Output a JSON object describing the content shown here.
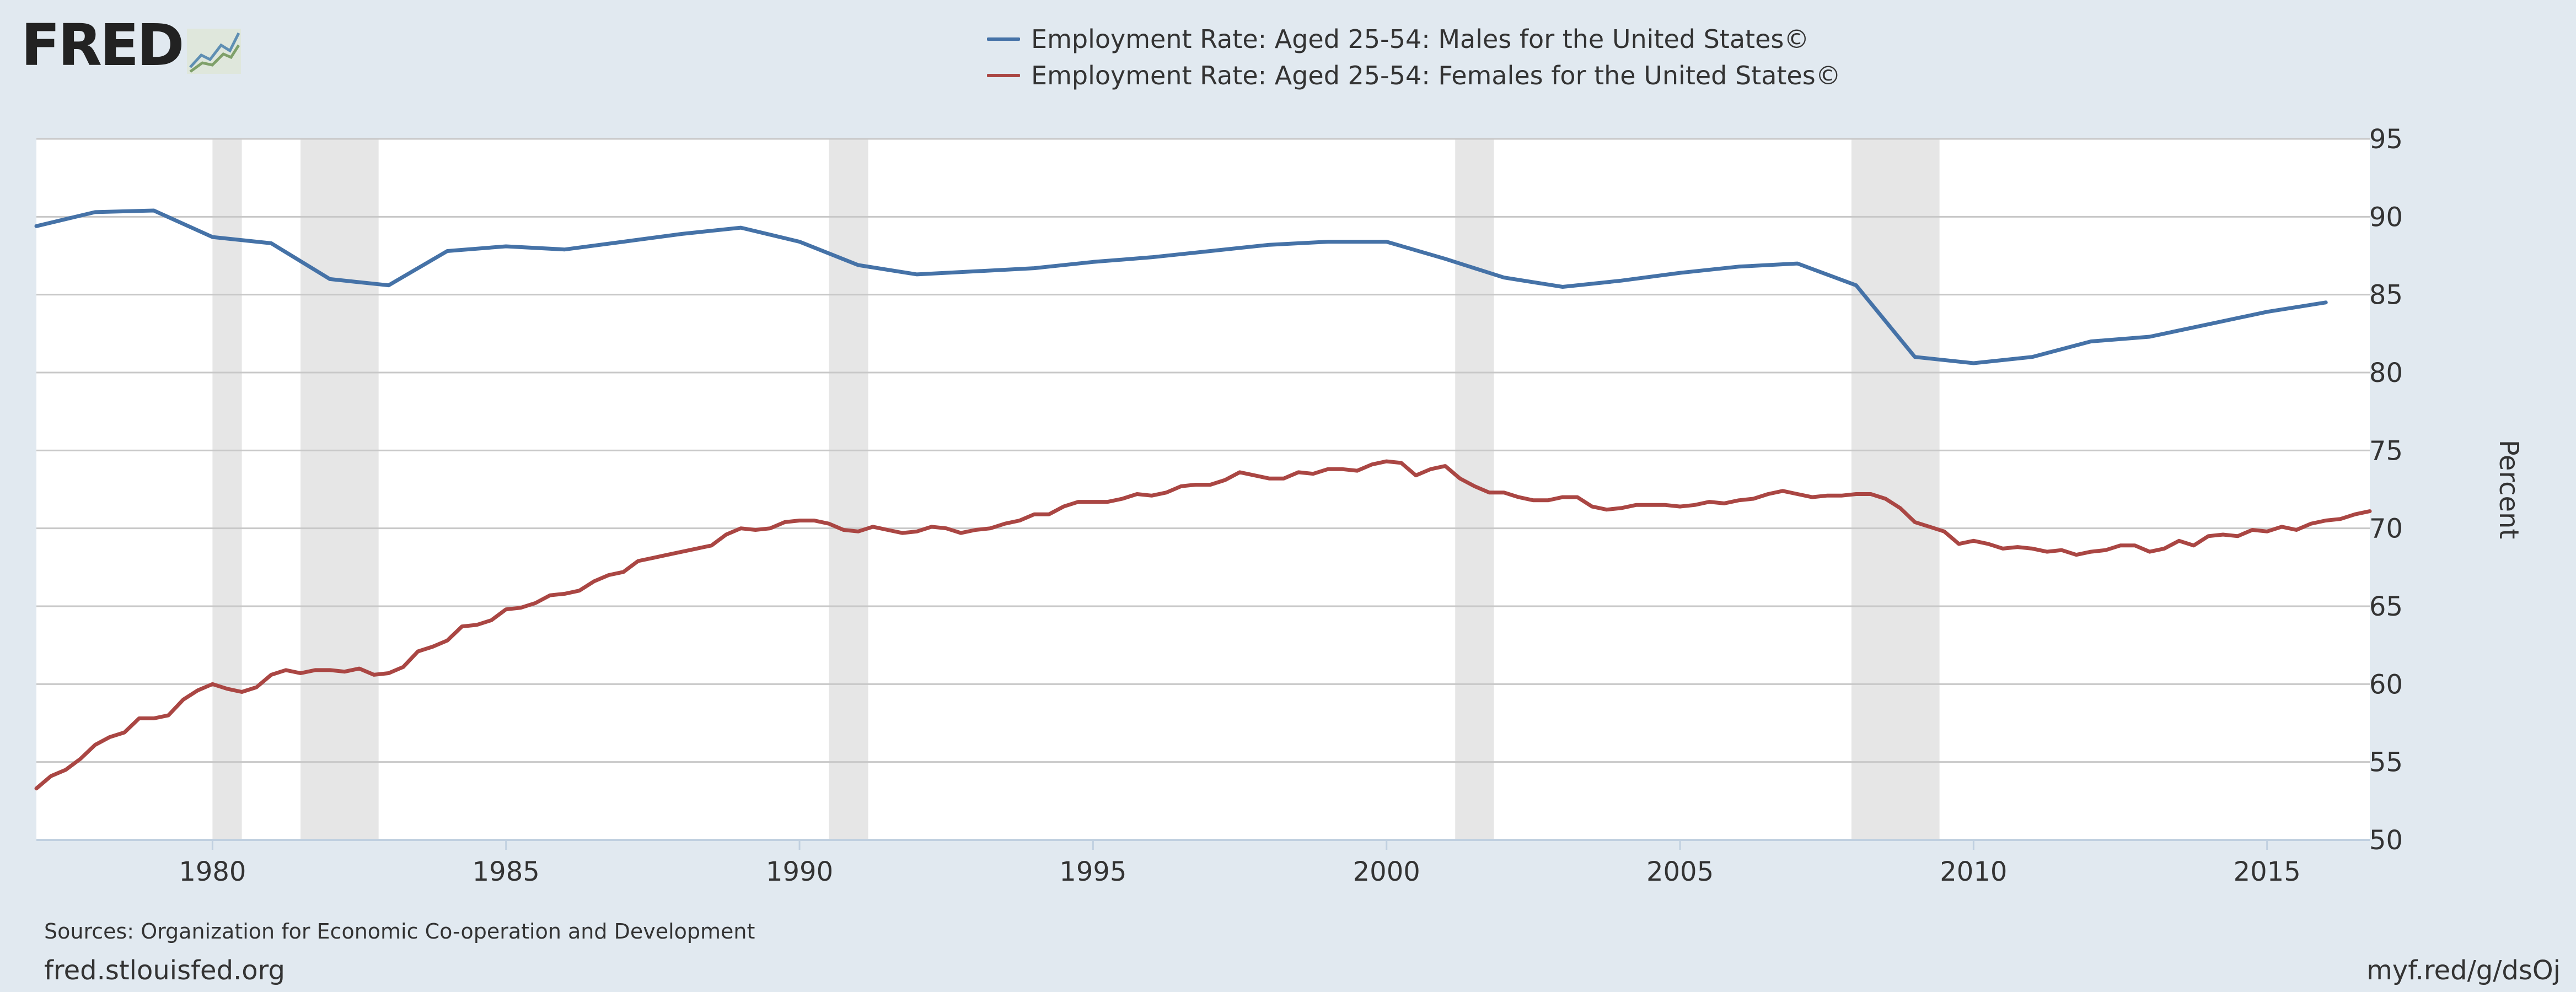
{
  "logo": {
    "text": "FRED"
  },
  "legend": [
    {
      "label": "Employment Rate: Aged 25-54: Males for the United States©",
      "color": "#4572a7"
    },
    {
      "label": "Employment Rate: Aged 25-54: Females for the United States©",
      "color": "#aa4643"
    }
  ],
  "footer": {
    "source": "Sources: Organization for Economic Co-operation and Development",
    "site": "fred.stlouisfed.org",
    "shortlink": "myf.red/g/dsOj"
  },
  "chart_data": {
    "type": "line",
    "title": "",
    "xlabel": "",
    "ylabel": "Percent",
    "xlim": [
      1977.0,
      2016.75
    ],
    "ylim": [
      50,
      95
    ],
    "x_ticks": [
      1980,
      1985,
      1990,
      1995,
      2000,
      2005,
      2010,
      2015
    ],
    "y_ticks": [
      50,
      55,
      60,
      65,
      70,
      75,
      80,
      85,
      90,
      95
    ],
    "grid": "horizontal",
    "legend_position": "top-center",
    "recessions": [
      [
        1980.0,
        1980.5
      ],
      [
        1981.5,
        1982.83
      ],
      [
        1990.5,
        1991.17
      ],
      [
        2001.17,
        2001.83
      ],
      [
        2007.92,
        2009.42
      ]
    ],
    "series": [
      {
        "name": "Employment Rate: Aged 25-54: Males for the United States©",
        "color": "#4572a7",
        "points": [
          [
            1977.0,
            89.4
          ],
          [
            1978.0,
            90.3
          ],
          [
            1979.0,
            90.4
          ],
          [
            1980.0,
            88.7
          ],
          [
            1981.0,
            88.3
          ],
          [
            1982.0,
            86.0
          ],
          [
            1983.0,
            85.6
          ],
          [
            1984.0,
            87.8
          ],
          [
            1985.0,
            88.1
          ],
          [
            1986.0,
            87.9
          ],
          [
            1987.0,
            88.4
          ],
          [
            1988.0,
            88.9
          ],
          [
            1989.0,
            89.3
          ],
          [
            1990.0,
            88.4
          ],
          [
            1991.0,
            86.9
          ],
          [
            1992.0,
            86.3
          ],
          [
            1993.0,
            86.5
          ],
          [
            1994.0,
            86.7
          ],
          [
            1995.0,
            87.1
          ],
          [
            1996.0,
            87.4
          ],
          [
            1997.0,
            87.8
          ],
          [
            1998.0,
            88.2
          ],
          [
            1999.0,
            88.4
          ],
          [
            2000.0,
            88.4
          ],
          [
            2001.0,
            87.3
          ],
          [
            2002.0,
            86.1
          ],
          [
            2003.0,
            85.5
          ],
          [
            2004.0,
            85.9
          ],
          [
            2005.0,
            86.4
          ],
          [
            2006.0,
            86.8
          ],
          [
            2007.0,
            87.0
          ],
          [
            2008.0,
            85.6
          ],
          [
            2009.0,
            81.0
          ],
          [
            2010.0,
            80.6
          ],
          [
            2011.0,
            81.0
          ],
          [
            2012.0,
            82.0
          ],
          [
            2013.0,
            82.3
          ],
          [
            2014.0,
            83.1
          ],
          [
            2015.0,
            83.9
          ],
          [
            2016.0,
            84.5
          ]
        ]
      },
      {
        "name": "Employment Rate: Aged 25-54: Females for the United States©",
        "color": "#aa4643",
        "points": [
          [
            1977.0,
            53.3
          ],
          [
            1977.25,
            54.1
          ],
          [
            1977.5,
            54.5
          ],
          [
            1977.75,
            55.2
          ],
          [
            1978.0,
            56.1
          ],
          [
            1978.25,
            56.6
          ],
          [
            1978.5,
            56.9
          ],
          [
            1978.75,
            57.8
          ],
          [
            1979.0,
            57.8
          ],
          [
            1979.25,
            58.0
          ],
          [
            1979.5,
            59.0
          ],
          [
            1979.75,
            59.6
          ],
          [
            1980.0,
            60.0
          ],
          [
            1980.25,
            59.7
          ],
          [
            1980.5,
            59.5
          ],
          [
            1980.75,
            59.8
          ],
          [
            1981.0,
            60.6
          ],
          [
            1981.25,
            60.9
          ],
          [
            1981.5,
            60.7
          ],
          [
            1981.75,
            60.9
          ],
          [
            1982.0,
            60.9
          ],
          [
            1982.25,
            60.8
          ],
          [
            1982.5,
            61.0
          ],
          [
            1982.75,
            60.6
          ],
          [
            1983.0,
            60.7
          ],
          [
            1983.25,
            61.1
          ],
          [
            1983.5,
            62.1
          ],
          [
            1983.75,
            62.4
          ],
          [
            1984.0,
            62.8
          ],
          [
            1984.25,
            63.7
          ],
          [
            1984.5,
            63.8
          ],
          [
            1984.75,
            64.1
          ],
          [
            1985.0,
            64.8
          ],
          [
            1985.25,
            64.9
          ],
          [
            1985.5,
            65.2
          ],
          [
            1985.75,
            65.7
          ],
          [
            1986.0,
            65.8
          ],
          [
            1986.25,
            66.0
          ],
          [
            1986.5,
            66.6
          ],
          [
            1986.75,
            67.0
          ],
          [
            1987.0,
            67.2
          ],
          [
            1987.25,
            67.9
          ],
          [
            1987.5,
            68.1
          ],
          [
            1987.75,
            68.3
          ],
          [
            1988.0,
            68.5
          ],
          [
            1988.25,
            68.7
          ],
          [
            1988.5,
            68.9
          ],
          [
            1988.75,
            69.6
          ],
          [
            1989.0,
            70.0
          ],
          [
            1989.25,
            69.9
          ],
          [
            1989.5,
            70.0
          ],
          [
            1989.75,
            70.4
          ],
          [
            1990.0,
            70.5
          ],
          [
            1990.25,
            70.5
          ],
          [
            1990.5,
            70.3
          ],
          [
            1990.75,
            69.9
          ],
          [
            1991.0,
            69.8
          ],
          [
            1991.25,
            70.1
          ],
          [
            1991.5,
            69.9
          ],
          [
            1991.75,
            69.7
          ],
          [
            1992.0,
            69.8
          ],
          [
            1992.25,
            70.1
          ],
          [
            1992.5,
            70.0
          ],
          [
            1992.75,
            69.7
          ],
          [
            1993.0,
            69.9
          ],
          [
            1993.25,
            70.0
          ],
          [
            1993.5,
            70.3
          ],
          [
            1993.75,
            70.5
          ],
          [
            1994.0,
            70.9
          ],
          [
            1994.25,
            70.9
          ],
          [
            1994.5,
            71.4
          ],
          [
            1994.75,
            71.7
          ],
          [
            1995.0,
            71.7
          ],
          [
            1995.25,
            71.7
          ],
          [
            1995.5,
            71.9
          ],
          [
            1995.75,
            72.2
          ],
          [
            1996.0,
            72.1
          ],
          [
            1996.25,
            72.3
          ],
          [
            1996.5,
            72.7
          ],
          [
            1996.75,
            72.8
          ],
          [
            1997.0,
            72.8
          ],
          [
            1997.25,
            73.1
          ],
          [
            1997.5,
            73.6
          ],
          [
            1997.75,
            73.4
          ],
          [
            1998.0,
            73.2
          ],
          [
            1998.25,
            73.2
          ],
          [
            1998.5,
            73.6
          ],
          [
            1998.75,
            73.5
          ],
          [
            1999.0,
            73.8
          ],
          [
            1999.25,
            73.8
          ],
          [
            1999.5,
            73.7
          ],
          [
            1999.75,
            74.1
          ],
          [
            2000.0,
            74.3
          ],
          [
            2000.25,
            74.2
          ],
          [
            2000.5,
            73.4
          ],
          [
            2000.75,
            73.8
          ],
          [
            2001.0,
            74.0
          ],
          [
            2001.25,
            73.2
          ],
          [
            2001.5,
            72.7
          ],
          [
            2001.75,
            72.3
          ],
          [
            2002.0,
            72.3
          ],
          [
            2002.25,
            72.0
          ],
          [
            2002.5,
            71.8
          ],
          [
            2002.75,
            71.8
          ],
          [
            2003.0,
            72.0
          ],
          [
            2003.25,
            72.0
          ],
          [
            2003.5,
            71.4
          ],
          [
            2003.75,
            71.2
          ],
          [
            2004.0,
            71.3
          ],
          [
            2004.25,
            71.5
          ],
          [
            2004.5,
            71.5
          ],
          [
            2004.75,
            71.5
          ],
          [
            2005.0,
            71.4
          ],
          [
            2005.25,
            71.5
          ],
          [
            2005.5,
            71.7
          ],
          [
            2005.75,
            71.6
          ],
          [
            2006.0,
            71.8
          ],
          [
            2006.25,
            71.9
          ],
          [
            2006.5,
            72.2
          ],
          [
            2006.75,
            72.4
          ],
          [
            2007.0,
            72.2
          ],
          [
            2007.25,
            72.0
          ],
          [
            2007.5,
            72.1
          ],
          [
            2007.75,
            72.1
          ],
          [
            2008.0,
            72.2
          ],
          [
            2008.25,
            72.2
          ],
          [
            2008.5,
            71.9
          ],
          [
            2008.75,
            71.3
          ],
          [
            2009.0,
            70.4
          ],
          [
            2009.25,
            70.1
          ],
          [
            2009.5,
            69.8
          ],
          [
            2009.75,
            69.0
          ],
          [
            2010.0,
            69.2
          ],
          [
            2010.25,
            69.0
          ],
          [
            2010.5,
            68.7
          ],
          [
            2010.75,
            68.8
          ],
          [
            2011.0,
            68.7
          ],
          [
            2011.25,
            68.5
          ],
          [
            2011.5,
            68.6
          ],
          [
            2011.75,
            68.3
          ],
          [
            2012.0,
            68.5
          ],
          [
            2012.25,
            68.6
          ],
          [
            2012.5,
            68.9
          ],
          [
            2012.75,
            68.9
          ],
          [
            2013.0,
            68.5
          ],
          [
            2013.25,
            68.7
          ],
          [
            2013.5,
            69.2
          ],
          [
            2013.75,
            68.9
          ],
          [
            2014.0,
            69.5
          ],
          [
            2014.25,
            69.6
          ],
          [
            2014.5,
            69.5
          ],
          [
            2014.75,
            69.9
          ],
          [
            2015.0,
            69.8
          ],
          [
            2015.25,
            70.1
          ],
          [
            2015.5,
            69.9
          ],
          [
            2015.75,
            70.3
          ],
          [
            2016.0,
            70.5
          ],
          [
            2016.25,
            70.6
          ],
          [
            2016.5,
            70.9
          ],
          [
            2016.75,
            71.1
          ]
        ]
      }
    ]
  }
}
